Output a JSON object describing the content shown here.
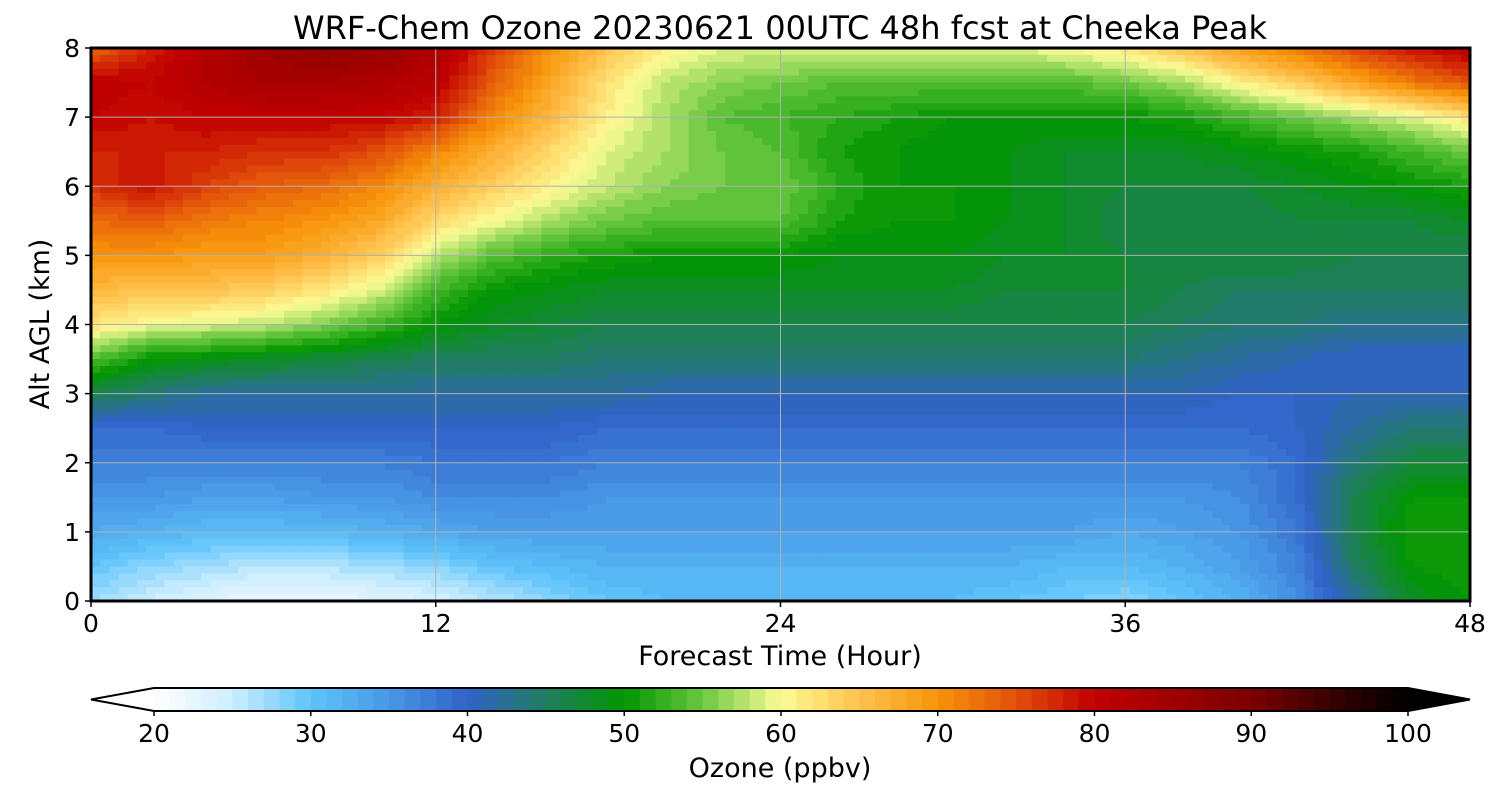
{
  "chart_data": {
    "type": "heatmap",
    "title": "WRF-Chem Ozone  20230621 00UTC 48h fcst at Cheeka Peak",
    "xlabel": "Forecast Time (Hour)",
    "ylabel": "Alt AGL (km)",
    "xlim": [
      0,
      48
    ],
    "ylim": [
      0,
      8
    ],
    "xticks": [
      0,
      12,
      24,
      36,
      48
    ],
    "yticks": [
      0,
      1,
      2,
      3,
      4,
      5,
      6,
      7,
      8
    ],
    "grid": true,
    "x": [
      0,
      2,
      4,
      6,
      8,
      10,
      12,
      14,
      16,
      18,
      20,
      22,
      24,
      26,
      28,
      30,
      32,
      34,
      36,
      38,
      40,
      42,
      44,
      46,
      48
    ],
    "y": [
      0,
      0.5,
      1,
      1.5,
      2,
      2.5,
      3,
      3.5,
      4,
      4.5,
      5,
      5.5,
      6,
      6.5,
      7,
      7.5,
      8
    ],
    "z": [
      [
        27,
        25,
        23,
        22,
        22,
        23,
        24,
        26,
        28,
        30,
        31,
        31,
        31,
        31,
        31,
        31,
        30,
        29,
        28,
        30,
        32,
        36,
        42,
        48,
        50
      ],
      [
        30,
        28,
        27,
        26,
        26,
        27,
        28,
        30,
        31,
        32,
        32,
        32,
        32,
        32,
        32,
        32,
        32,
        31,
        31,
        32,
        34,
        37,
        45,
        50,
        51
      ],
      [
        33,
        32,
        31,
        31,
        31,
        32,
        33,
        34,
        34,
        34,
        34,
        34,
        34,
        34,
        34,
        34,
        34,
        34,
        33,
        34,
        35,
        38,
        46,
        51,
        51
      ],
      [
        35,
        35,
        34,
        34,
        35,
        35,
        36,
        36,
        36,
        35,
        35,
        35,
        35,
        35,
        35,
        35,
        35,
        35,
        35,
        35,
        36,
        39,
        46,
        50,
        50
      ],
      [
        37,
        37,
        37,
        37,
        37,
        37,
        38,
        38,
        38,
        37,
        37,
        37,
        37,
        37,
        37,
        37,
        37,
        37,
        37,
        37,
        37,
        39,
        44,
        47,
        47
      ],
      [
        39,
        39,
        40,
        40,
        40,
        40,
        40,
        40,
        40,
        39,
        39,
        39,
        39,
        39,
        39,
        39,
        39,
        39,
        39,
        39,
        39,
        40,
        42,
        44,
        44
      ],
      [
        46,
        44,
        42,
        42,
        42,
        42,
        42,
        42,
        42,
        42,
        41,
        41,
        41,
        41,
        41,
        41,
        41,
        41,
        41,
        41,
        40,
        40,
        41,
        41,
        41
      ],
      [
        54,
        50,
        49,
        48,
        47,
        46,
        45,
        45,
        45,
        44,
        44,
        44,
        44,
        44,
        44,
        44,
        44,
        44,
        44,
        43,
        42,
        41,
        40,
        40,
        40
      ],
      [
        62,
        60,
        59,
        58,
        56,
        53,
        50,
        48,
        47,
        46,
        46,
        46,
        46,
        46,
        46,
        46,
        46,
        46,
        46,
        45,
        44,
        44,
        43,
        43,
        43
      ],
      [
        66,
        65,
        65,
        64,
        62,
        59,
        53,
        50,
        49,
        48,
        48,
        48,
        48,
        48,
        48,
        48,
        47,
        47,
        47,
        46,
        45,
        45,
        45,
        45,
        45
      ],
      [
        70,
        70,
        69,
        69,
        67,
        64,
        58,
        54,
        52,
        51,
        50,
        50,
        50,
        49,
        49,
        49,
        48,
        48,
        47,
        47,
        47,
        47,
        46,
        46,
        46
      ],
      [
        73,
        74,
        72,
        71,
        70,
        68,
        63,
        60,
        57,
        55,
        54,
        54,
        54,
        51,
        50,
        50,
        49,
        48,
        46,
        46,
        46,
        47,
        47,
        47,
        48
      ],
      [
        77,
        79,
        76,
        74,
        73,
        71,
        67,
        64,
        61,
        58,
        56,
        55,
        55,
        52,
        50,
        50,
        49,
        48,
        47,
        47,
        47,
        48,
        49,
        50,
        51
      ],
      [
        78,
        78,
        78,
        77,
        77,
        75,
        71,
        67,
        63,
        59,
        57,
        55,
        54,
        51,
        50,
        49,
        49,
        48,
        48,
        48,
        49,
        50,
        51,
        53,
        55
      ],
      [
        80,
        79,
        80,
        80,
        80,
        80,
        78,
        71,
        66,
        61,
        57,
        54,
        53,
        52,
        51,
        50,
        50,
        50,
        50,
        51,
        53,
        55,
        57,
        59,
        62
      ],
      [
        81,
        80,
        82,
        84,
        84,
        83,
        81,
        74,
        68,
        62,
        58,
        56,
        55,
        54,
        54,
        54,
        54,
        54,
        55,
        57,
        61,
        64,
        68,
        72,
        75
      ],
      [
        73,
        78,
        82,
        85,
        87,
        86,
        83,
        76,
        70,
        65,
        61,
        59,
        59,
        59,
        59,
        59,
        59,
        60,
        62,
        65,
        69,
        72,
        76,
        79,
        81
      ]
    ],
    "colorbar": {
      "label": "Ozone  (ppbv)",
      "min": 20,
      "max": 100,
      "ticks": [
        20,
        30,
        40,
        50,
        60,
        70,
        80,
        90,
        100
      ],
      "extend": "both",
      "levels": 80
    },
    "colors": {
      "stops": [
        [
          20,
          "#ffffff"
        ],
        [
          25,
          "#cdeeff"
        ],
        [
          30,
          "#5ec3fa"
        ],
        [
          35,
          "#4898e6"
        ],
        [
          40,
          "#3162c8"
        ],
        [
          45,
          "#207e5f"
        ],
        [
          50,
          "#019600"
        ],
        [
          55,
          "#6bc842"
        ],
        [
          60,
          "#fbfc96"
        ],
        [
          65,
          "#ffc14d"
        ],
        [
          70,
          "#f7940a"
        ],
        [
          75,
          "#e2500b"
        ],
        [
          80,
          "#c10000"
        ],
        [
          85,
          "#a00000"
        ],
        [
          90,
          "#7a0000"
        ],
        [
          95,
          "#3a0000"
        ],
        [
          100,
          "#000000"
        ]
      ],
      "grid": "#b0b0b0",
      "frame": "#000000"
    }
  }
}
